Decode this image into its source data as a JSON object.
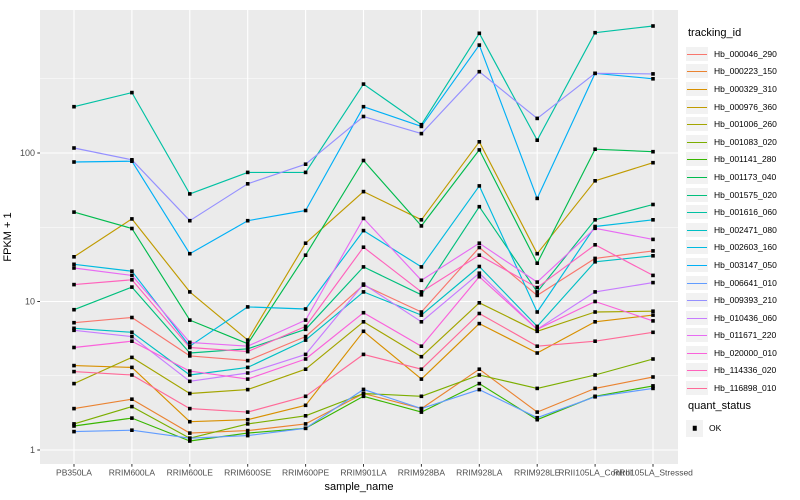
{
  "figure": {
    "background": "#FFFFFF",
    "panel_background": "#EBEBEB",
    "grid_color": "#FFFFFF",
    "tick_label_color": "#4D4D4D",
    "point_color": "#000000"
  },
  "axes": {
    "x_title": "sample_name",
    "y_title": "FPKM + 1"
  },
  "legend": {
    "tracking_title": "tracking_id",
    "quant_title": "quant_status",
    "quant_items": [
      {
        "label": "OK",
        "marker": "black-square"
      }
    ]
  },
  "chart_data": {
    "type": "line",
    "title": "",
    "xlabel": "sample_name",
    "ylabel": "FPKM + 1",
    "y_scale": "log10",
    "y_ticks": [
      1,
      10,
      100
    ],
    "y_minor_ticks": [
      3.1623,
      31.623,
      316.23
    ],
    "ylim": [
      0.82,
      920
    ],
    "grid": true,
    "legend_position": "right",
    "point_marker": "filled-black-square",
    "categories": [
      "PB350LA",
      "RRIM600LA",
      "RRIM600LE",
      "RRIM600SE",
      "RRIM600PE",
      "RRIM901LA",
      "RRIM928BA",
      "RRIM928LA",
      "RRIM928LE",
      "RRII105LA_Control",
      "RRII105LA_Stressed"
    ],
    "series": [
      {
        "name": "Hb_000046_290",
        "color": "#F8766D",
        "values": [
          7.2,
          7.8,
          4.3,
          4.0,
          5.8,
          12.9,
          8.5,
          23.1,
          11.0,
          19.5,
          21.9
        ]
      },
      {
        "name": "Hb_000223_150",
        "color": "#EA8331",
        "values": [
          1.9,
          2.2,
          1.3,
          1.35,
          1.5,
          2.4,
          1.9,
          3.5,
          1.8,
          2.6,
          3.1
        ]
      },
      {
        "name": "Hb_000329_310",
        "color": "#D89000",
        "values": [
          3.7,
          3.6,
          1.55,
          1.6,
          2.0,
          6.3,
          3.0,
          7.1,
          4.5,
          7.3,
          8.1
        ]
      },
      {
        "name": "Hb_000976_360",
        "color": "#C09B00",
        "values": [
          20,
          36,
          11.6,
          5.5,
          24.7,
          55,
          35.5,
          119,
          21,
          65,
          86
        ]
      },
      {
        "name": "Hb_001006_260",
        "color": "#A3A500",
        "values": [
          2.8,
          4.2,
          2.4,
          2.55,
          3.5,
          7.3,
          4.25,
          9.8,
          6.3,
          8.5,
          8.6
        ]
      },
      {
        "name": "Hb_001083_020",
        "color": "#7CAE00",
        "values": [
          1.5,
          1.96,
          1.2,
          1.5,
          1.7,
          2.4,
          2.3,
          3.2,
          2.6,
          3.2,
          4.1
        ]
      },
      {
        "name": "Hb_001141_280",
        "color": "#39B600",
        "values": [
          1.45,
          1.64,
          1.15,
          1.3,
          1.4,
          2.3,
          1.8,
          2.8,
          1.6,
          2.3,
          2.7
        ]
      },
      {
        "name": "Hb_001173_040",
        "color": "#00BB4E",
        "values": [
          40,
          31,
          7.5,
          5.2,
          20.5,
          89,
          32.3,
          105,
          18.1,
          106,
          102
        ]
      },
      {
        "name": "Hb_001575_020",
        "color": "#00BF7D",
        "values": [
          8.8,
          12.5,
          4.5,
          4.8,
          6.5,
          17.1,
          11.1,
          43.5,
          11.6,
          35.5,
          45
        ]
      },
      {
        "name": "Hb_001616_060",
        "color": "#00C1A3",
        "values": [
          205,
          255,
          53,
          74,
          74,
          291,
          155,
          640,
          122,
          646,
          716
        ]
      },
      {
        "name": "Hb_002471_080",
        "color": "#00BFC4",
        "values": [
          6.6,
          6.2,
          3.2,
          3.6,
          5.5,
          11.6,
          8.1,
          17.2,
          6.8,
          18.5,
          20.3
        ]
      },
      {
        "name": "Hb_002603_160",
        "color": "#00BAE0",
        "values": [
          17.8,
          16,
          5.0,
          9.2,
          8.9,
          30,
          17.1,
          60,
          8.5,
          32,
          35.5
        ]
      },
      {
        "name": "Hb_003147_050",
        "color": "#00B0F6",
        "values": [
          87,
          88,
          21,
          35,
          41,
          205,
          151,
          533,
          49.5,
          344,
          316
        ]
      },
      {
        "name": "Hb_006641_010",
        "color": "#619CFF",
        "values": [
          1.33,
          1.36,
          1.2,
          1.25,
          1.4,
          2.56,
          1.9,
          2.55,
          1.65,
          2.28,
          2.6
        ]
      },
      {
        "name": "Hb_009393_210",
        "color": "#9590FF",
        "values": [
          108,
          90,
          35,
          62,
          84,
          176,
          135,
          353,
          171,
          344,
          341
        ]
      },
      {
        "name": "Hb_010436_060",
        "color": "#C77CFF",
        "values": [
          6.4,
          5.8,
          2.9,
          3.3,
          4.4,
          13.1,
          7.3,
          15.5,
          6.5,
          11.6,
          13.4
        ]
      },
      {
        "name": "Hb_011671_220",
        "color": "#E76BF3",
        "values": [
          16.8,
          15,
          5.3,
          5.0,
          7.5,
          36.3,
          13.9,
          24.7,
          13.5,
          31.1,
          26.2
        ]
      },
      {
        "name": "Hb_020000_010",
        "color": "#FA62DB",
        "values": [
          4.9,
          5.4,
          3.4,
          3.0,
          4.1,
          8.4,
          5.0,
          14.7,
          6.5,
          10.0,
          7.4
        ]
      },
      {
        "name": "Hb_114336_020",
        "color": "#FF62BC",
        "values": [
          13,
          14,
          4.9,
          4.6,
          6.8,
          23.2,
          11.6,
          20.5,
          12.4,
          24.1,
          15.0
        ]
      },
      {
        "name": "Hb_116898_010",
        "color": "#FF6A98",
        "values": [
          3.37,
          3.2,
          1.9,
          1.8,
          2.3,
          4.4,
          3.5,
          8.3,
          5.0,
          5.4,
          6.2
        ]
      }
    ]
  }
}
